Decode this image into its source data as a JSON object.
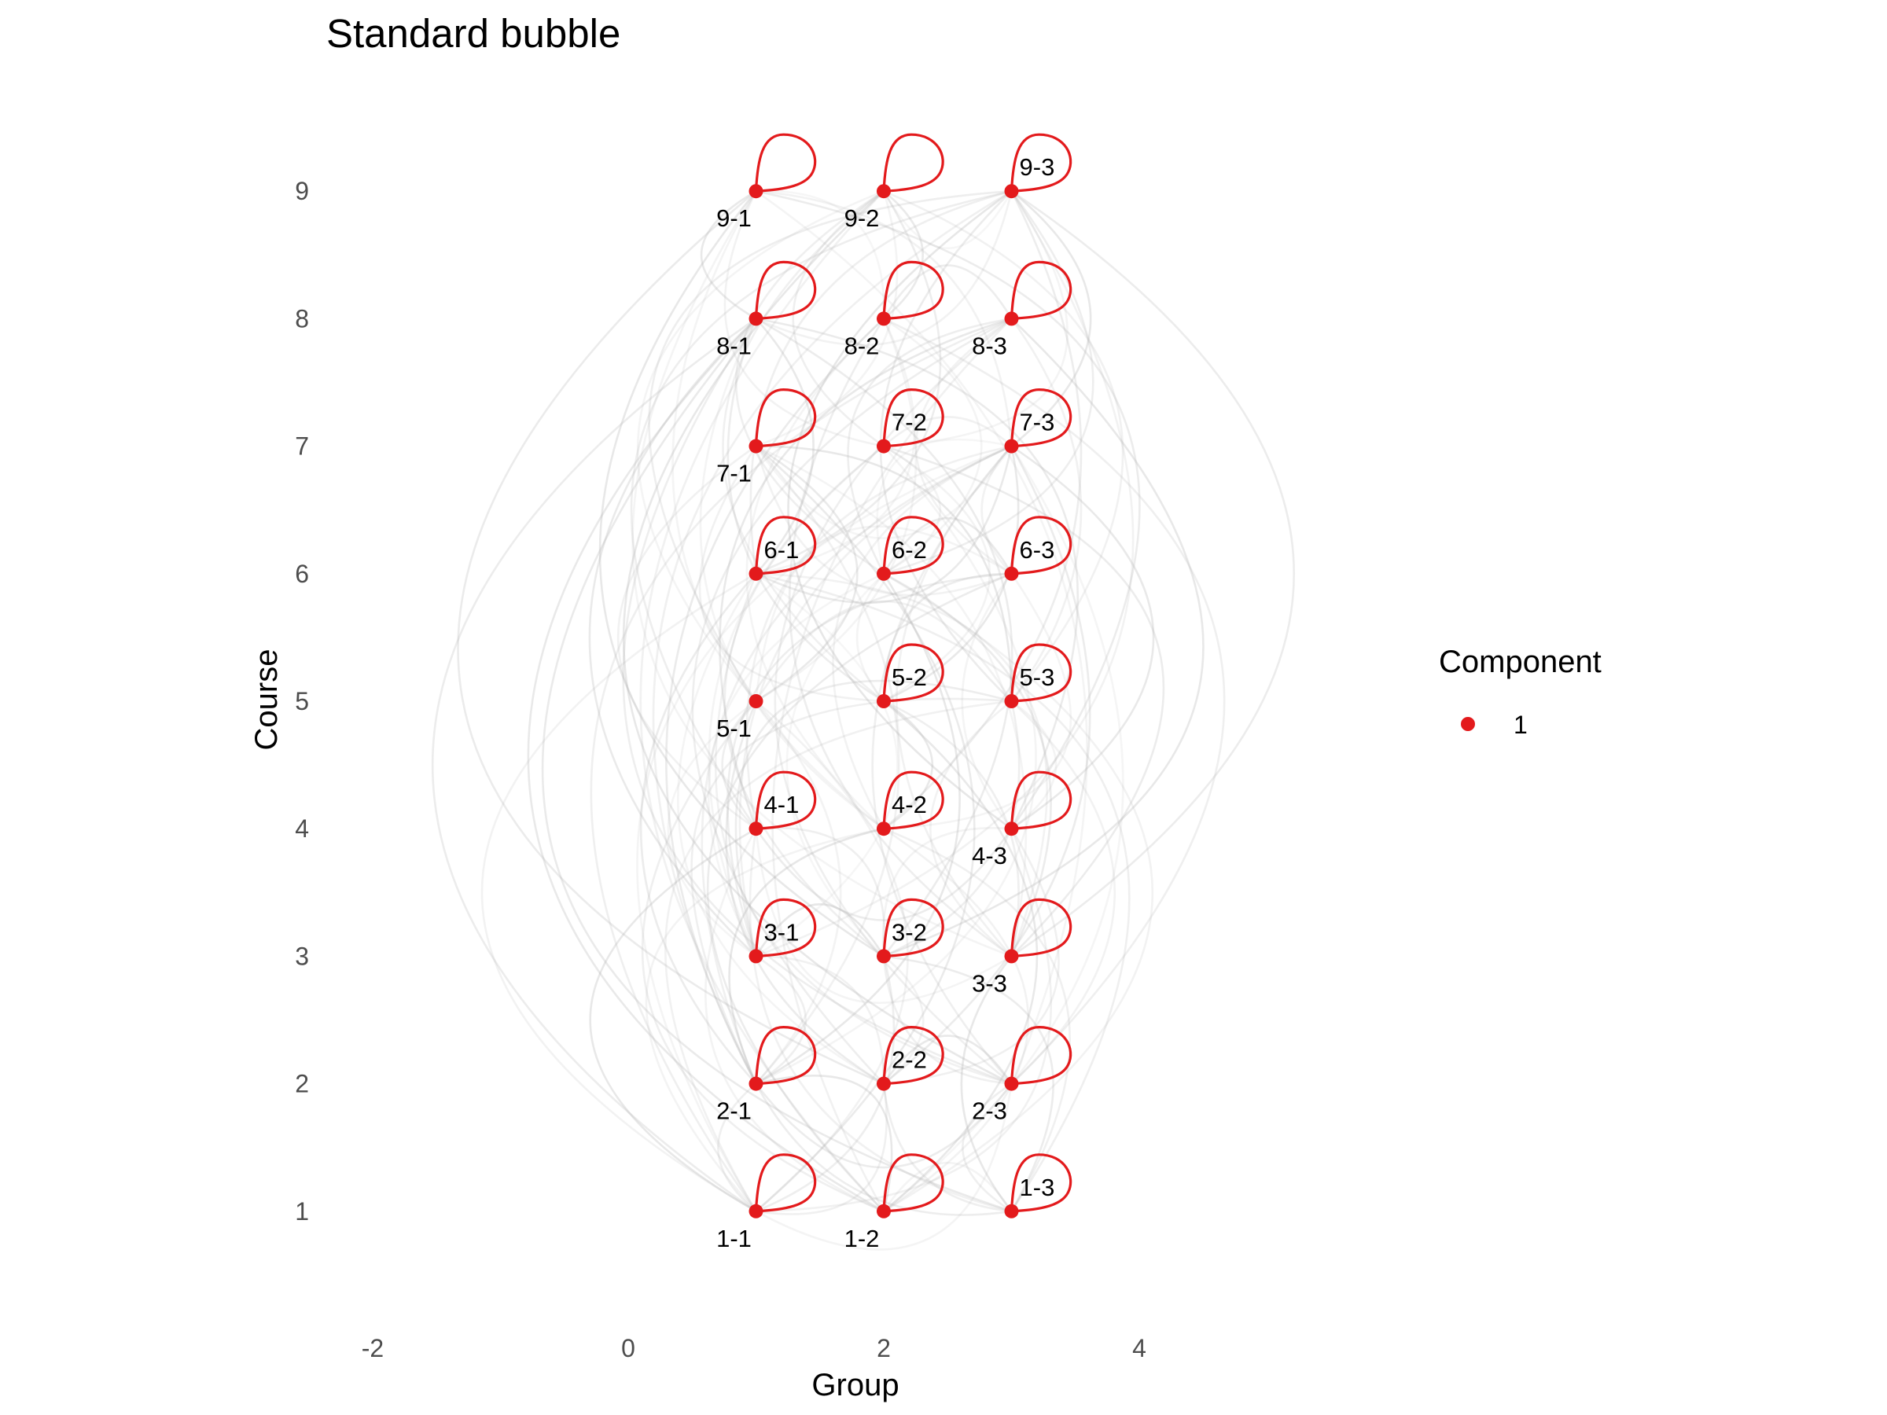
{
  "chart_data": {
    "type": "scatter",
    "title": "Standard bubble",
    "xlabel": "Group",
    "ylabel": "Course",
    "xlim": [
      -2.2,
      5.4
    ],
    "ylim": [
      0.3,
      9.85
    ],
    "xticks": [
      -2,
      0,
      2,
      4
    ],
    "yticks": [
      1,
      2,
      3,
      4,
      5,
      6,
      7,
      8,
      9
    ],
    "grid": false,
    "legend": {
      "title": "Component",
      "position": "right",
      "entries": [
        {
          "label": "1",
          "color": "#e31a1c"
        }
      ]
    },
    "colors": {
      "node": "#e31a1c",
      "self_loop": "#e31a1c",
      "edge": "#b4b4b4"
    },
    "nodes": [
      {
        "label": "1-1",
        "x": 1,
        "y": 1,
        "component": "1",
        "self_loop": true,
        "label_pos": "below"
      },
      {
        "label": "1-2",
        "x": 2,
        "y": 1,
        "component": "1",
        "self_loop": true,
        "label_pos": "below"
      },
      {
        "label": "1-3",
        "x": 3,
        "y": 1,
        "component": "1",
        "self_loop": true,
        "label_pos": "above"
      },
      {
        "label": "2-1",
        "x": 1,
        "y": 2,
        "component": "1",
        "self_loop": true,
        "label_pos": "below"
      },
      {
        "label": "2-2",
        "x": 2,
        "y": 2,
        "component": "1",
        "self_loop": true,
        "label_pos": "above"
      },
      {
        "label": "2-3",
        "x": 3,
        "y": 2,
        "component": "1",
        "self_loop": true,
        "label_pos": "below"
      },
      {
        "label": "3-1",
        "x": 1,
        "y": 3,
        "component": "1",
        "self_loop": true,
        "label_pos": "above"
      },
      {
        "label": "3-2",
        "x": 2,
        "y": 3,
        "component": "1",
        "self_loop": true,
        "label_pos": "above"
      },
      {
        "label": "3-3",
        "x": 3,
        "y": 3,
        "component": "1",
        "self_loop": true,
        "label_pos": "below"
      },
      {
        "label": "4-1",
        "x": 1,
        "y": 4,
        "component": "1",
        "self_loop": true,
        "label_pos": "above"
      },
      {
        "label": "4-2",
        "x": 2,
        "y": 4,
        "component": "1",
        "self_loop": true,
        "label_pos": "above"
      },
      {
        "label": "4-3",
        "x": 3,
        "y": 4,
        "component": "1",
        "self_loop": true,
        "label_pos": "below"
      },
      {
        "label": "5-1",
        "x": 1,
        "y": 5,
        "component": "1",
        "self_loop": false,
        "label_pos": "below"
      },
      {
        "label": "5-2",
        "x": 2,
        "y": 5,
        "component": "1",
        "self_loop": true,
        "label_pos": "above"
      },
      {
        "label": "5-3",
        "x": 3,
        "y": 5,
        "component": "1",
        "self_loop": true,
        "label_pos": "above"
      },
      {
        "label": "6-1",
        "x": 1,
        "y": 6,
        "component": "1",
        "self_loop": true,
        "label_pos": "above"
      },
      {
        "label": "6-2",
        "x": 2,
        "y": 6,
        "component": "1",
        "self_loop": true,
        "label_pos": "above"
      },
      {
        "label": "6-3",
        "x": 3,
        "y": 6,
        "component": "1",
        "self_loop": true,
        "label_pos": "above"
      },
      {
        "label": "7-1",
        "x": 1,
        "y": 7,
        "component": "1",
        "self_loop": true,
        "label_pos": "below"
      },
      {
        "label": "7-2",
        "x": 2,
        "y": 7,
        "component": "1",
        "self_loop": true,
        "label_pos": "above"
      },
      {
        "label": "7-3",
        "x": 3,
        "y": 7,
        "component": "1",
        "self_loop": true,
        "label_pos": "above"
      },
      {
        "label": "8-1",
        "x": 1,
        "y": 8,
        "component": "1",
        "self_loop": true,
        "label_pos": "below"
      },
      {
        "label": "8-2",
        "x": 2,
        "y": 8,
        "component": "1",
        "self_loop": true,
        "label_pos": "below"
      },
      {
        "label": "8-3",
        "x": 3,
        "y": 8,
        "component": "1",
        "self_loop": true,
        "label_pos": "below"
      },
      {
        "label": "9-1",
        "x": 1,
        "y": 9,
        "component": "1",
        "self_loop": true,
        "label_pos": "below"
      },
      {
        "label": "9-2",
        "x": 2,
        "y": 9,
        "component": "1",
        "self_loop": true,
        "label_pos": "below"
      },
      {
        "label": "9-3",
        "x": 3,
        "y": 9,
        "component": "1",
        "self_loop": true,
        "label_pos": "above"
      }
    ]
  }
}
